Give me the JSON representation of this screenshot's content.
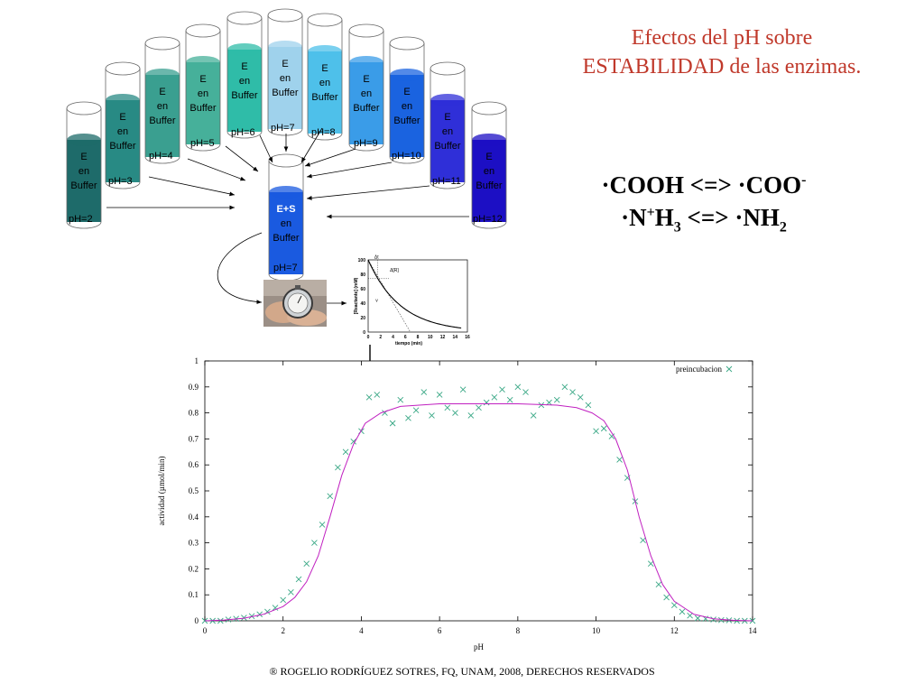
{
  "title": {
    "line1": "Efectos del pH sobre",
    "line2": "ESTABILIDAD de las enzimas."
  },
  "reaction1": {
    "left": "·COOH <=> ·COO",
    "sup": "-"
  },
  "reaction2": {
    "a": "·N",
    "sup": "+",
    "b": "H",
    "sub3": "3",
    "c": " <=> ·NH",
    "sub2": "2"
  },
  "tubes": [
    {
      "ph_label": "pH=2",
      "lines": [
        "E",
        "en",
        "Buffer"
      ],
      "color": "#1e6b6a"
    },
    {
      "ph_label": "pH=3",
      "lines": [
        "E",
        "en",
        "Buffer"
      ],
      "color": "#288a84"
    },
    {
      "ph_label": "pH=4",
      "lines": [
        "E",
        "en",
        "Buffer"
      ],
      "color": "#3a9f90"
    },
    {
      "ph_label": "pH=5",
      "lines": [
        "E",
        "en",
        "Buffer"
      ],
      "color": "#46b09a"
    },
    {
      "ph_label": "pH=6",
      "lines": [
        "E",
        "en",
        "Buffer"
      ],
      "color": "#2fbca8"
    },
    {
      "ph_label": "pH=7",
      "lines": [
        "E",
        "en",
        "Buffer"
      ],
      "color": "#9fd2ec"
    },
    {
      "ph_label": "pH=8",
      "lines": [
        "E",
        "en",
        "Buffer"
      ],
      "color": "#4ec0ea"
    },
    {
      "ph_label": "pH=9",
      "lines": [
        "E",
        "en",
        "Buffer"
      ],
      "color": "#3a9ce8"
    },
    {
      "ph_label": "pH=10",
      "lines": [
        "E",
        "en",
        "Buffer"
      ],
      "color": "#1a63e0"
    },
    {
      "ph_label": "pH=11",
      "lines": [
        "E",
        "en",
        "Buffer"
      ],
      "color": "#2f2fd8"
    },
    {
      "ph_label": "pH=12",
      "lines": [
        "E",
        "en",
        "Buffer"
      ],
      "color": "#1c0fc4"
    }
  ],
  "center_tube": {
    "ph_label": "pH=7",
    "lines": [
      "E+S",
      "en",
      "Buffer"
    ],
    "color": "#1a5ae0"
  },
  "stopwatch_icon": "stopwatch-photo",
  "small_plot": {
    "ylabel": "[Reactante] (mM)",
    "xlabel": "tiempo (min)",
    "yticks": [
      "100",
      "80",
      "60",
      "40",
      "20",
      "0"
    ],
    "xticks": [
      "0",
      "2",
      "4",
      "6",
      "8",
      "10",
      "12",
      "14",
      "16"
    ],
    "dt_label": "Δt",
    "dr_label": "Δ[R]",
    "v_label": "v"
  },
  "chart_data": {
    "type": "scatter",
    "xlabel": "pH",
    "ylabel": "actividad (µmol/min)",
    "xlim": [
      0,
      14
    ],
    "ylim": [
      0,
      1
    ],
    "xticks": [
      "0",
      "2",
      "4",
      "6",
      "8",
      "10",
      "12",
      "14"
    ],
    "yticks": [
      "0",
      "0.1",
      "0.2",
      "0.3",
      "0.4",
      "0.5",
      "0.6",
      "0.7",
      "0.8",
      "0.9",
      "1"
    ],
    "legend_placement": "top-right",
    "grid": false,
    "series": [
      {
        "name": "preincubacion",
        "kind": "points",
        "color": "#3aa886",
        "x": [
          0,
          0.2,
          0.4,
          0.6,
          0.8,
          1.0,
          1.2,
          1.4,
          1.6,
          1.8,
          2.0,
          2.2,
          2.4,
          2.6,
          2.8,
          3.0,
          3.2,
          3.4,
          3.6,
          3.8,
          4.0,
          4.2,
          4.4,
          4.6,
          4.8,
          5.0,
          5.2,
          5.4,
          5.6,
          5.8,
          6.0,
          6.2,
          6.4,
          6.6,
          6.8,
          7.0,
          7.2,
          7.4,
          7.6,
          7.8,
          8.0,
          8.2,
          8.4,
          8.6,
          8.8,
          9.0,
          9.2,
          9.4,
          9.6,
          9.8,
          10.0,
          10.2,
          10.4,
          10.6,
          10.8,
          11.0,
          11.2,
          11.4,
          11.6,
          11.8,
          12.0,
          12.2,
          12.4,
          12.6,
          12.8,
          13.0,
          13.2,
          13.4,
          13.6,
          13.8,
          14.0
        ],
        "y": [
          0.0,
          0.0,
          0.0,
          0.005,
          0.008,
          0.012,
          0.018,
          0.025,
          0.035,
          0.05,
          0.08,
          0.11,
          0.16,
          0.22,
          0.3,
          0.37,
          0.48,
          0.59,
          0.65,
          0.69,
          0.73,
          0.86,
          0.87,
          0.8,
          0.76,
          0.85,
          0.78,
          0.81,
          0.88,
          0.79,
          0.87,
          0.82,
          0.8,
          0.89,
          0.79,
          0.82,
          0.84,
          0.86,
          0.89,
          0.85,
          0.9,
          0.88,
          0.79,
          0.83,
          0.84,
          0.85,
          0.9,
          0.88,
          0.86,
          0.83,
          0.73,
          0.74,
          0.71,
          0.62,
          0.55,
          0.46,
          0.31,
          0.22,
          0.14,
          0.09,
          0.06,
          0.035,
          0.02,
          0.01,
          0.008,
          0.005,
          0.003,
          0.002,
          0.0,
          0.0,
          0.0
        ]
      },
      {
        "name": "",
        "kind": "line",
        "color": "#c020c0",
        "x": [
          0,
          0.5,
          1.0,
          1.5,
          2.0,
          2.3,
          2.6,
          2.9,
          3.2,
          3.5,
          3.8,
          4.1,
          4.5,
          5,
          6,
          7,
          8,
          9,
          9.5,
          9.9,
          10.2,
          10.5,
          10.8,
          11.1,
          11.4,
          11.7,
          12.0,
          12.5,
          13.0,
          13.5,
          14.0
        ],
        "y": [
          0.0,
          0.003,
          0.01,
          0.025,
          0.055,
          0.09,
          0.15,
          0.25,
          0.4,
          0.56,
          0.68,
          0.76,
          0.8,
          0.825,
          0.835,
          0.835,
          0.835,
          0.83,
          0.82,
          0.8,
          0.77,
          0.7,
          0.58,
          0.4,
          0.25,
          0.14,
          0.075,
          0.025,
          0.008,
          0.002,
          0.0
        ]
      }
    ]
  },
  "footer": "® ROGELIO RODRÍGUEZ SOTRES, FQ, UNAM, 2008, DERECHOS RESERVADOS"
}
